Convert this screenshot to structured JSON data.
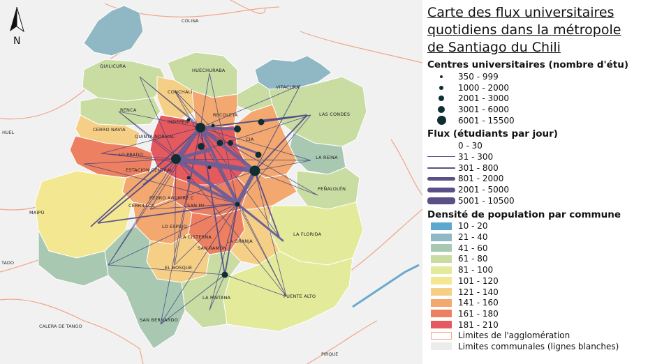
{
  "legend": {
    "title_lines": [
      "Carte des flux universitaires",
      "quotidiens dans la métropole",
      "de Santiago du Chili"
    ],
    "centers_title": "Centres universitaires (nombre d'étu)",
    "centers": [
      {
        "label": "350 - 999"
      },
      {
        "label": "1000 - 2000"
      },
      {
        "label": "2001 - 3000"
      },
      {
        "label": "3001 - 6000"
      },
      {
        "label": "6001 - 15500"
      }
    ],
    "flows_title": "Flux (étudiants par jour)",
    "flows": [
      {
        "label": "0 - 30"
      },
      {
        "label": "31 - 300"
      },
      {
        "label": "301 - 800"
      },
      {
        "label": "801 - 2000"
      },
      {
        "label": "2001 - 5000"
      },
      {
        "label": "5001 - 10500"
      }
    ],
    "density_title": "Densité de population par commune",
    "density": [
      {
        "label": "10 - 20",
        "color": "#5ea7cf"
      },
      {
        "label": "21 - 40",
        "color": "#8fb8c4"
      },
      {
        "label": "41 - 60",
        "color": "#a9c8b2"
      },
      {
        "label": "61 - 80",
        "color": "#c9dca2"
      },
      {
        "label": "81 - 100",
        "color": "#e3ea9a"
      },
      {
        "label": "101 - 120",
        "color": "#f4e792"
      },
      {
        "label": "121 - 140",
        "color": "#f6cf86"
      },
      {
        "label": "141 - 160",
        "color": "#f2a86e"
      },
      {
        "label": "161 - 180",
        "color": "#ec8060"
      },
      {
        "label": "181 - 210",
        "color": "#e45a5e"
      }
    ],
    "agglo_label": "Limites de l'agglomération",
    "communal_label": "Limites communales (lignes blanches)"
  },
  "north_label": "N",
  "communes": {
    "colina": "COLINA",
    "quilicura": "QUILICURA",
    "huechuraba": "HUECHURABA",
    "vitacura": "VITACURA",
    "conchali": "CONCHALÍ",
    "renca": "RENCA",
    "independencia": "INDEPEN",
    "recoleta": "RECOLETA",
    "las_condes": "LAS CONDES",
    "cerro_navia": "CERRO NAVIA",
    "quinta_normal": "QUINTA NORMAL",
    "providencia": "CIA",
    "lo_prado": "LO PRADO",
    "la_reina": "LA REINA",
    "estacion_central": "ESTACION CENTRAL",
    "penalolen": "PEÑALOLÉN",
    "pudahuel": "HUEL",
    "maipu": "MAIPÚ",
    "cerrillos": "CERRILLOS",
    "pedro_aguirre_cerda": "PEDRO AGUIRRE C",
    "san_miguel": "SAN MI",
    "lo_espejo": "LO ESPEJO",
    "la_cisterna": "LA CISTERNA",
    "la_granja": "LA GRANJA",
    "san_ramon": "SAN RAMÓN",
    "la_florida": "LA FLORIDA",
    "padre_hurtado": "TADO",
    "el_bosque": "EL BOSQUE",
    "la_pintana": "LA PINTANA",
    "puente_alto": "PUENTE ALTO",
    "san_bernardo": "SAN BERNARDO",
    "calera_de_tango": "CALERA DE TANGO",
    "pirque": "PIRQUE"
  }
}
